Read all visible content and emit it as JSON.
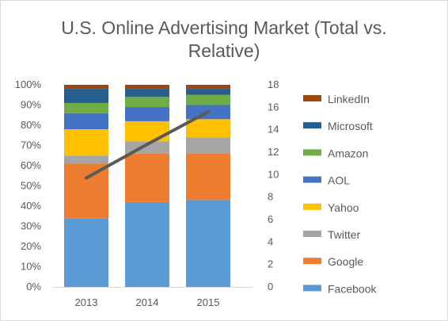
{
  "chart_data": {
    "type": "bar",
    "stacked": true,
    "title_lines": [
      "U.S. Online Advertising Market (Total vs.",
      "Relative)"
    ],
    "categories": [
      "2013",
      "2014",
      "2015"
    ],
    "y_left": {
      "range": [
        0,
        100
      ],
      "ticks": [
        "0%",
        "10%",
        "20%",
        "30%",
        "40%",
        "50%",
        "60%",
        "70%",
        "80%",
        "90%",
        "100%"
      ]
    },
    "y_right": {
      "range": [
        0,
        18
      ],
      "ticks": [
        "0",
        "2",
        "4",
        "6",
        "8",
        "10",
        "12",
        "14",
        "16",
        "18"
      ]
    },
    "series": [
      {
        "name": "Facebook",
        "color": "#5b9bd5",
        "values": [
          34,
          42,
          43
        ]
      },
      {
        "name": "Google",
        "color": "#ed7d31",
        "values": [
          27,
          24,
          23
        ]
      },
      {
        "name": "Twitter",
        "color": "#a5a5a5",
        "values": [
          4,
          6,
          8
        ]
      },
      {
        "name": "Yahoo",
        "color": "#ffc000",
        "values": [
          13,
          10,
          9
        ]
      },
      {
        "name": "AOL",
        "color": "#4472c4",
        "values": [
          8,
          7,
          7
        ]
      },
      {
        "name": "Amazon",
        "color": "#70ad47",
        "values": [
          5,
          5,
          5
        ]
      },
      {
        "name": "Microsoft",
        "color": "#255e91",
        "values": [
          7,
          4,
          3
        ]
      },
      {
        "name": "LinkedIn",
        "color": "#9e480e",
        "values": [
          2,
          2,
          2
        ]
      }
    ],
    "line": {
      "color": "#5a5a5a",
      "axis": "right",
      "values": [
        9.7,
        12.7,
        15.6
      ]
    },
    "legend_position": "right",
    "grid": false
  }
}
